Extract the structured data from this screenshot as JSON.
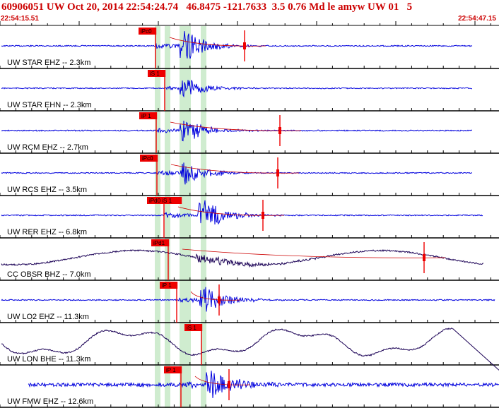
{
  "header": {
    "title": "60906051 UW Oct 20, 2014 22:54:24.74   46.8475 -121.7633  3.5 0.76 Md le amyw UW 01   5",
    "start_time": "22:54:15.51",
    "end_time": "22:54:47.15"
  },
  "colors": {
    "header_text": "#cc0000",
    "trace_short_period": "#0000dd",
    "trace_broadband": "#1a0055",
    "pick_marker": "#ee0000",
    "window_band": "#a8dca8",
    "coda_line": "#cc0000"
  },
  "traces": [
    {
      "label": "UW STAR EHZ -- 2.3km",
      "pick": "iPc0",
      "type": "sp"
    },
    {
      "label": "UW STAR EHN -- 2.3km",
      "pick": "iS 1",
      "type": "sp"
    },
    {
      "label": "UW RCM EHZ -- 2.7km",
      "pick": "iP 1",
      "type": "sp"
    },
    {
      "label": "UW RCS EHZ -- 3.5km",
      "pick": "iPc0",
      "type": "sp"
    },
    {
      "label": "UW RER EHZ -- 6.8km",
      "pick": "iPd0 iS 1",
      "type": "sp"
    },
    {
      "label": "CC OBSR BHZ -- 7.0km",
      "pick": "iPd1",
      "type": "bb"
    },
    {
      "label": "UW LO2 EHZ -- 11.3km",
      "pick": "iP 1",
      "type": "sp"
    },
    {
      "label": "UW LON BHE -- 11.3km",
      "pick": "iS 1",
      "type": "lp"
    },
    {
      "label": "UW FMW EHZ -- 12.6km",
      "pick": "iP 1",
      "type": "sp"
    }
  ]
}
